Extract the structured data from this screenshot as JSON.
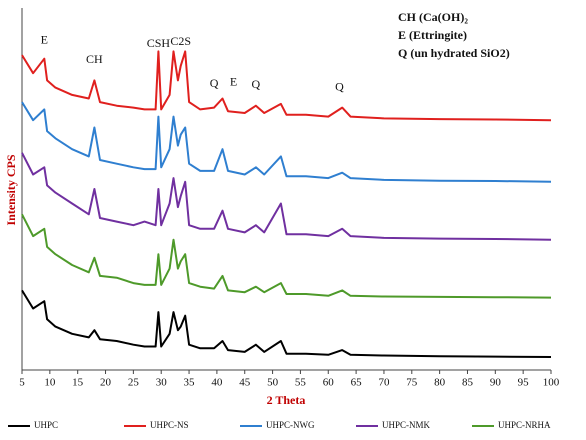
{
  "chart_data": {
    "type": "line",
    "x_label": "2 Theta",
    "y_label": "Intensity CPS",
    "x": [
      5,
      7,
      9,
      9.5,
      11,
      14,
      17,
      18,
      19,
      22,
      25,
      27,
      29,
      29.5,
      30,
      31.5,
      32.2,
      33,
      33.5,
      34.3,
      35,
      37,
      39.5,
      41,
      42,
      45,
      47,
      48.5,
      51.5,
      52.5,
      56,
      60,
      62.5,
      64,
      70,
      80,
      90,
      100
    ],
    "xlim": [
      5,
      100
    ],
    "xticks": [
      5,
      10,
      15,
      20,
      25,
      30,
      35,
      40,
      45,
      50,
      55,
      60,
      65,
      70,
      75,
      80,
      85,
      90,
      95,
      100
    ],
    "ylim": [
      0,
      100
    ],
    "series": [
      {
        "name": "UHPC",
        "color": "#000000",
        "values": [
          22,
          17,
          19,
          14,
          12,
          10,
          9,
          11,
          8.5,
          8,
          7,
          6.5,
          6.5,
          16,
          6.5,
          10,
          16,
          11,
          12,
          15,
          7,
          6,
          6,
          8,
          5.5,
          5,
          7,
          5,
          8,
          4.5,
          4.5,
          4.2,
          5.5,
          4.2,
          4,
          3.8,
          3.7,
          3.6
        ]
      },
      {
        "name": "UHPC-NS",
        "color": "#e0201e",
        "values": [
          87,
          82,
          86,
          80,
          78,
          76,
          75,
          80,
          74,
          73,
          72.5,
          72,
          72,
          88,
          72,
          76,
          88,
          80,
          84,
          88,
          74,
          72,
          72.5,
          75,
          71.5,
          71,
          73,
          71,
          73.5,
          70.5,
          70.5,
          70,
          72.5,
          70,
          69.5,
          69.3,
          69.2,
          69
        ]
      },
      {
        "name": "UHPC-NWG",
        "color": "#2f7fd0",
        "values": [
          74,
          69,
          72,
          66,
          64,
          61,
          59,
          67,
          58,
          57,
          56,
          55.5,
          55.5,
          70,
          56,
          61,
          70,
          62,
          65,
          67,
          57,
          55,
          55,
          61,
          55,
          54,
          56,
          54,
          59,
          53.5,
          53.5,
          53,
          54.5,
          53,
          52.5,
          52.3,
          52.2,
          52
        ]
      },
      {
        "name": "UHPC-NMK",
        "color": "#7030a0",
        "values": [
          60,
          54,
          56,
          51,
          49,
          46,
          43,
          50,
          42,
          41,
          40,
          41,
          40,
          50,
          40,
          46,
          53,
          45,
          48,
          52,
          40,
          39,
          39,
          44,
          39,
          38,
          40,
          38,
          46,
          37.5,
          37.5,
          37,
          39,
          37,
          36.5,
          36.3,
          36.2,
          36
        ]
      },
      {
        "name": "UHPC-NRHA",
        "color": "#4e9a2a",
        "values": [
          43,
          37,
          39,
          34,
          32,
          29,
          27,
          31,
          26,
          25.5,
          24,
          23.5,
          23.5,
          32,
          23.5,
          28,
          36,
          28,
          30,
          32,
          24,
          23,
          22.5,
          26,
          22,
          21.5,
          23,
          21.5,
          24,
          21,
          21,
          20.5,
          22,
          20.5,
          20.3,
          20.2,
          20.1,
          20
        ]
      }
    ],
    "annotations": [
      {
        "text": "E",
        "x": 9,
        "y": 91
      },
      {
        "text": "CH",
        "x": 18,
        "y": 85.5
      },
      {
        "text": "CSH",
        "x": 29.5,
        "y": 90
      },
      {
        "text": "C2S",
        "x": 33.5,
        "y": 90.5
      },
      {
        "text": "Q",
        "x": 39.5,
        "y": 79
      },
      {
        "text": "E",
        "x": 43,
        "y": 79.3
      },
      {
        "text": "Q",
        "x": 47,
        "y": 78.6
      },
      {
        "text": "Q",
        "x": 62,
        "y": 78
      }
    ],
    "key": [
      "CH (Ca(OH)₂",
      "E (Ettringite)",
      "Q (un hydrated SiO2)"
    ]
  }
}
